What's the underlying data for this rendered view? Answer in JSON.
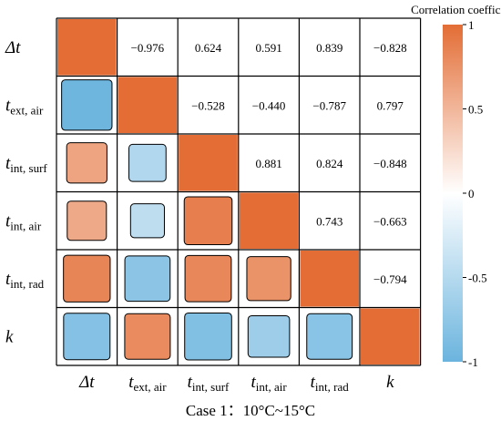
{
  "caption": "Case 1：10°C~15°C",
  "chart_data": {
    "type": "heatmap",
    "variables": [
      {
        "base": "Δt",
        "sub": ""
      },
      {
        "base": "t",
        "sub": "ext, air"
      },
      {
        "base": "t",
        "sub": "int, surf"
      },
      {
        "base": "t",
        "sub": "int, air"
      },
      {
        "base": "t",
        "sub": "int, rad"
      },
      {
        "base": "k",
        "sub": ""
      }
    ],
    "matrix": [
      [
        1,
        -0.976,
        0.624,
        0.591,
        0.839,
        -0.828
      ],
      [
        -0.976,
        1,
        -0.528,
        -0.44,
        -0.787,
        0.797
      ],
      [
        0.624,
        -0.528,
        1,
        0.881,
        0.824,
        -0.848
      ],
      [
        0.591,
        -0.44,
        0.881,
        1,
        0.743,
        -0.663
      ],
      [
        0.839,
        -0.787,
        0.824,
        0.743,
        1,
        -0.794
      ],
      [
        -0.828,
        0.797,
        -0.848,
        -0.663,
        -0.794,
        1
      ]
    ],
    "upper_labels": [
      "−0.976",
      "0.624",
      "0.591",
      "0.839",
      "−0.828",
      "−0.528",
      "−0.440",
      "−0.787",
      "0.797",
      "0.881",
      "0.824",
      "−0.848",
      "0.743",
      "−0.663",
      "−0.794"
    ],
    "colorbar": {
      "title": "Correlation coefficient",
      "ticks": [
        1,
        0.5,
        0,
        -0.5,
        -1
      ],
      "tick_labels": [
        "1",
        "0.5",
        "0",
        "-0.5",
        "-1"
      ],
      "range": [
        -1,
        1
      ]
    },
    "colors": {
      "positive": "#E36D35",
      "neutral": "#FFFFFF",
      "negative": "#6BB4DE"
    }
  }
}
